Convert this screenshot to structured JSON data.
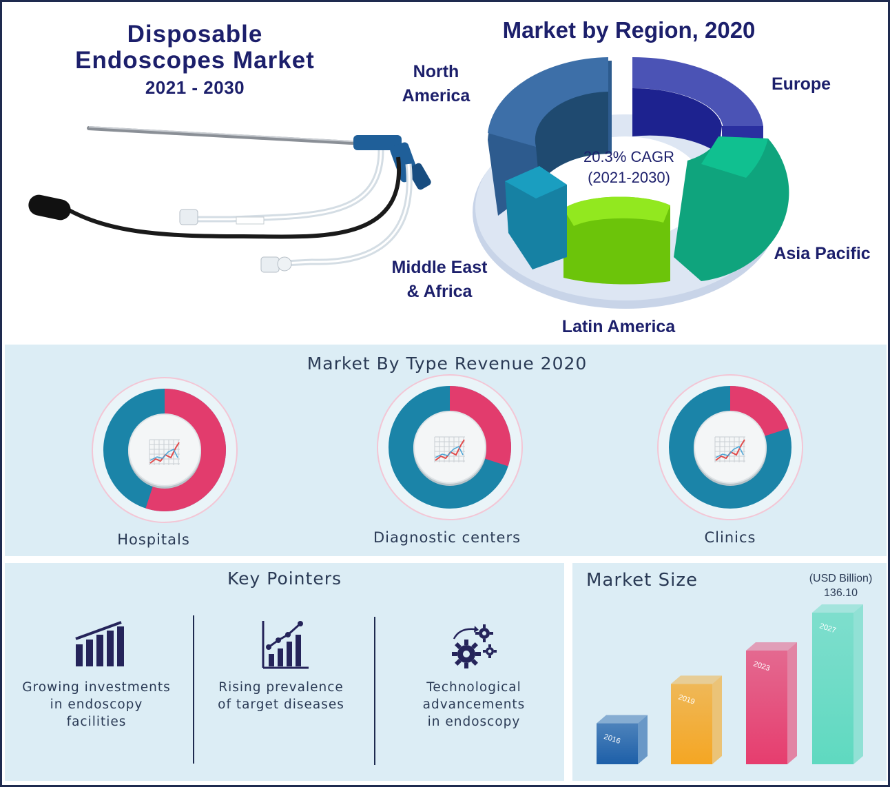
{
  "header": {
    "title_line1": "Disposable",
    "title_line2": "Endoscopes Market",
    "years": "2021 - 2030"
  },
  "region_chart": {
    "title": "Market by Region, 2020",
    "cagr_line1": "20.3% CAGR",
    "cagr_line2": "(2021-2030)",
    "labels": {
      "north_america_1": "North",
      "north_america_2": "America",
      "europe": "Europe",
      "asia_pacific": "Asia Pacific",
      "latin_america": "Latin America",
      "mea_1": "Middle East",
      "mea_2": "& Africa"
    },
    "colors": {
      "north_america": "#3d6fa8",
      "europe": "#2a2fa0",
      "asia_pacific": "#10c090",
      "latin_america": "#7ed50c",
      "mea": "#1a9ec0"
    }
  },
  "type_section": {
    "title": "Market By Type Revenue 2020",
    "labels": [
      "Hospitals",
      "Diagnostic centers",
      "Clinics"
    ]
  },
  "key_pointers": {
    "title": "Key Pointers",
    "items": [
      {
        "icon": "bar-chart-icon",
        "line1": "Growing investments",
        "line2": "in endoscopy",
        "line3": "facilities"
      },
      {
        "icon": "rising-chart-icon",
        "line1": "Rising prevalence",
        "line2": "of target diseases",
        "line3": ""
      },
      {
        "icon": "gears-icon",
        "line1": "Technological",
        "line2": "advancements",
        "line3": "in endoscopy"
      }
    ]
  },
  "market_size": {
    "title": "Market Size",
    "unit": "(USD Billion)",
    "top_value": "136.10"
  },
  "chart_data": [
    {
      "type": "pie",
      "title": "Market by Region, 2020",
      "categories": [
        "North America",
        "Europe",
        "Asia Pacific",
        "Latin America",
        "Middle East & Africa"
      ],
      "values": [
        28,
        23,
        21,
        16,
        12
      ]
    },
    {
      "type": "pie",
      "title": "Market By Type Revenue 2020",
      "categories": [
        "Hospitals",
        "Diagnostic centers",
        "Clinics"
      ],
      "series": [
        {
          "name": "Hospitals",
          "share": 0.55
        },
        {
          "name": "Diagnostic centers",
          "share": 0.3
        },
        {
          "name": "Clinics",
          "share": 0.2
        }
      ]
    },
    {
      "type": "bar",
      "title": "Market Size",
      "ylabel": "(USD Billion)",
      "categories": [
        "2016",
        "2019",
        "2023",
        "2027"
      ],
      "values": [
        null,
        null,
        null,
        136.1
      ],
      "relative_heights": [
        0.27,
        0.53,
        0.75,
        1.0
      ],
      "colors": [
        "#1d5fa8",
        "#f5a623",
        "#e63d6e",
        "#5fd9c0"
      ]
    }
  ]
}
